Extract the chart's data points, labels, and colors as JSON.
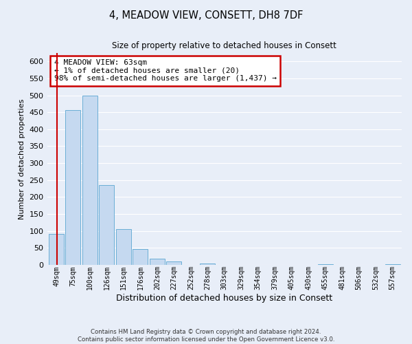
{
  "title": "4, MEADOW VIEW, CONSETT, DH8 7DF",
  "subtitle": "Size of property relative to detached houses in Consett",
  "xlabel": "Distribution of detached houses by size in Consett",
  "ylabel": "Number of detached properties",
  "bar_color": "#c5d9f0",
  "bar_edge_color": "#6aaed6",
  "background_color": "#e8eef8",
  "grid_color": "#ffffff",
  "categories": [
    "49sqm",
    "75sqm",
    "100sqm",
    "126sqm",
    "151sqm",
    "176sqm",
    "202sqm",
    "227sqm",
    "252sqm",
    "278sqm",
    "303sqm",
    "329sqm",
    "354sqm",
    "379sqm",
    "405sqm",
    "430sqm",
    "455sqm",
    "481sqm",
    "506sqm",
    "532sqm",
    "557sqm"
  ],
  "values": [
    90,
    457,
    500,
    235,
    105,
    46,
    18,
    9,
    0,
    4,
    0,
    0,
    0,
    0,
    0,
    0,
    1,
    0,
    0,
    0,
    2
  ],
  "ylim": [
    0,
    625
  ],
  "yticks": [
    0,
    50,
    100,
    150,
    200,
    250,
    300,
    350,
    400,
    450,
    500,
    550,
    600
  ],
  "annotation_box_text": "4 MEADOW VIEW: 63sqm\n← 1% of detached houses are smaller (20)\n98% of semi-detached houses are larger (1,437) →",
  "annotation_box_color": "#ffffff",
  "annotation_box_edge_color": "#cc0000",
  "vline_color": "#cc0000",
  "footer_line1": "Contains HM Land Registry data © Crown copyright and database right 2024.",
  "footer_line2": "Contains public sector information licensed under the Open Government Licence v3.0."
}
